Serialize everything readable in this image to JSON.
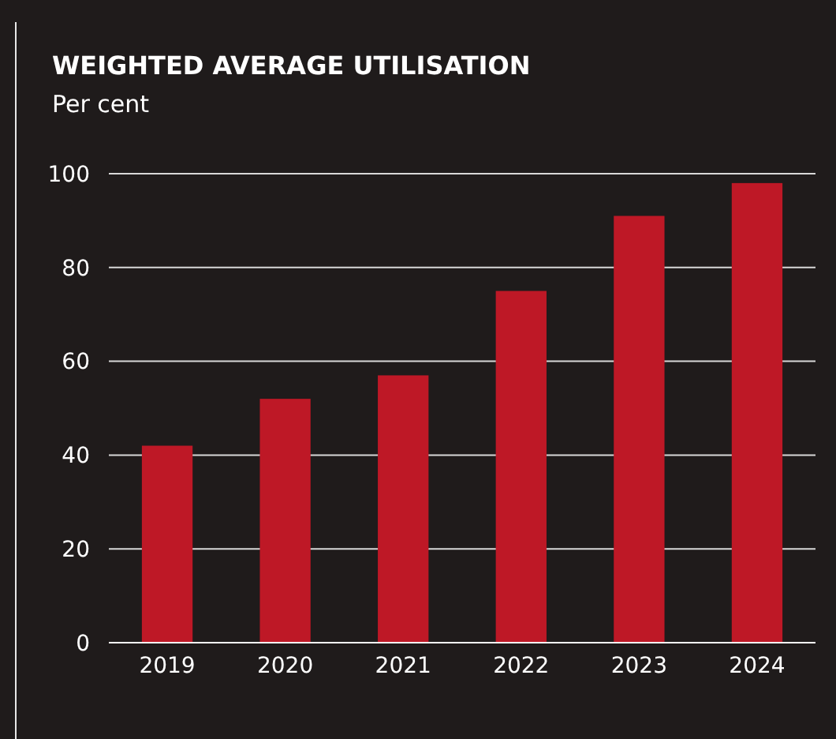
{
  "chart_data": {
    "type": "bar",
    "title": "WEIGHTED AVERAGE UTILISATION",
    "subtitle": "Per cent",
    "categories": [
      "2019",
      "2020",
      "2021",
      "2022",
      "2023",
      "2024"
    ],
    "values": [
      42,
      52,
      57,
      75,
      91,
      98
    ],
    "color": "#be1826",
    "ylim": [
      0,
      100
    ],
    "yticks": [
      0,
      20,
      40,
      60,
      80,
      100
    ],
    "grid": "y"
  }
}
